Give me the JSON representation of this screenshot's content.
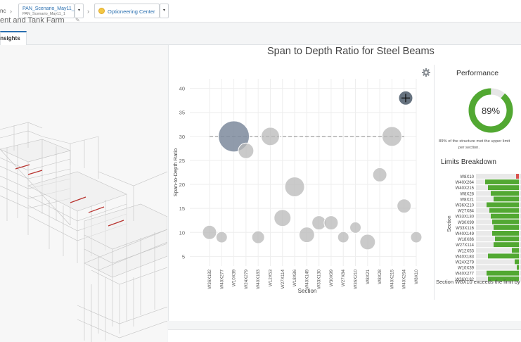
{
  "topbar": {
    "crumb_fragment": "nc",
    "scenario_name": "PAN_Scenario_May11_1",
    "scenario_sub": "PAN_Scenario_May11_1",
    "optioneering_label": "Optioneering Center",
    "page_title_fragment": "ent and Tank Farm",
    "page_title_icon": "✎"
  },
  "tabs": [
    {
      "label": "Insights"
    }
  ],
  "chart": {
    "title": "Span to Depth Ratio for Steel Beams"
  },
  "chart_data": [
    {
      "type": "scatter",
      "title": "Span to Depth Ratio for Steel Beams",
      "xlabel": "Section",
      "ylabel": "Span-to-Depth Ratio",
      "yticks": [
        5,
        10,
        15,
        20,
        25,
        30,
        35,
        40
      ],
      "ylim": [
        3,
        42
      ],
      "categories": [
        "W36X182",
        "W40X277",
        "W10X39",
        "W24X279",
        "W40X183",
        "W12X53",
        "W27X114",
        "W18X86",
        "W40X149",
        "W33X130",
        "W30X99",
        "W27X84",
        "W36X210",
        "W8X21",
        "W8X28",
        "W40X215",
        "W40X264",
        "W8X10"
      ],
      "threshold": 30,
      "grid": true,
      "legend": "none",
      "points": [
        {
          "x": "W36X182",
          "y": 10,
          "size": 10
        },
        {
          "x": "W40X277",
          "y": 9,
          "size": 8
        },
        {
          "x": "W10X39",
          "y": 30,
          "size": 22,
          "highlight": true
        },
        {
          "x": "W24X279",
          "y": 27,
          "size": 11
        },
        {
          "x": "W40X183",
          "y": 9,
          "size": 9
        },
        {
          "x": "W12X53",
          "y": 30,
          "size": 13
        },
        {
          "x": "W27X114",
          "y": 13,
          "size": 12
        },
        {
          "x": "W18X86",
          "y": 19.5,
          "size": 14
        },
        {
          "x": "W40X149",
          "y": 9.5,
          "size": 11
        },
        {
          "x": "W33X130",
          "y": 12,
          "size": 10
        },
        {
          "x": "W30X99",
          "y": 12,
          "size": 10
        },
        {
          "x": "W27X84",
          "y": 9,
          "size": 8
        },
        {
          "x": "W36X210",
          "y": 11,
          "size": 8
        },
        {
          "x": "W8X21",
          "y": 8,
          "size": 11
        },
        {
          "x": "W8X28",
          "y": 22,
          "size": 10
        },
        {
          "x": "W40X215",
          "y": 30,
          "size": 14
        },
        {
          "x": "W40X264",
          "y": 15.5,
          "size": 10
        },
        {
          "x": "W8X10",
          "y": 9,
          "size": 8
        },
        {
          "x": "W8X10",
          "y": 38,
          "size": 10,
          "dark": true
        }
      ]
    },
    {
      "type": "pie",
      "title": "Performance",
      "values": [
        89,
        11
      ],
      "center_label": "89%"
    },
    {
      "type": "bar",
      "title": "Limits Breakdown",
      "ylabel": "Section",
      "categories": [
        "W8X10",
        "W40X264",
        "W40X215",
        "W8X28",
        "W8X21",
        "W36X210",
        "W27X84",
        "W33X130",
        "W30X99",
        "W33X116",
        "W40X149",
        "W18X86",
        "W27X114",
        "W12X53",
        "W40X183",
        "W24X279",
        "W10X39",
        "W40X277",
        "W36X182"
      ],
      "values": [
        4,
        48,
        44,
        40,
        36,
        46,
        42,
        40,
        38,
        36,
        38,
        34,
        36,
        10,
        44,
        6,
        3,
        46,
        44
      ],
      "colors": [
        "#d9534f",
        "#52a832",
        "#52a832",
        "#52a832",
        "#52a832",
        "#52a832",
        "#52a832",
        "#52a832",
        "#52a832",
        "#52a832",
        "#52a832",
        "#52a832",
        "#52a832",
        "#52a832",
        "#52a832",
        "#52a832",
        "#52a832",
        "#52a832",
        "#52a832"
      ]
    }
  ],
  "performance": {
    "title": "Performance",
    "percent_label": "89%",
    "percent": 89,
    "desc_line1": "89% of the structure met the upper limit",
    "desc_line2": "per section."
  },
  "limits": {
    "title": "Limits Breakdown",
    "footer": "Section W8X10 exceeds the limit by"
  },
  "colors": {
    "accent": "#2a6fb0",
    "donut_green": "#52a832",
    "bubble": "#b8b8b8",
    "bubble_highlight": "#7d8a9c",
    "threshold_line": "#8a8a8a"
  },
  "icons": {
    "gear": "gear-icon",
    "optioneering": "lightbulb-icon",
    "dropdown": "chevron-down-icon"
  }
}
